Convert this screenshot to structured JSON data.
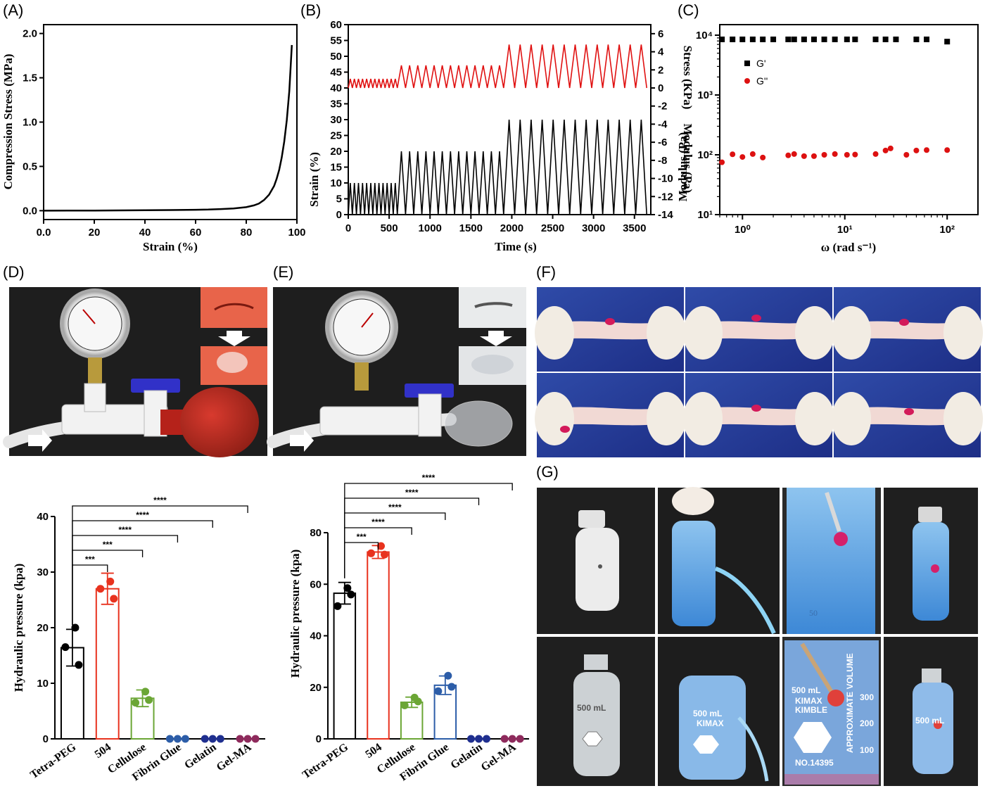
{
  "panels": {
    "A": "(A)",
    "B": "(B)",
    "C": "(C)",
    "D": "(D)",
    "E": "(E)",
    "F": "(F)",
    "G": "(G)"
  },
  "photos": {
    "D": {
      "description": "pressure gauge with valve, tubing and red balloon; insets show incision before and after sealing"
    },
    "E": {
      "description": "pressure gauge with valve, tubing and transparent bag; insets show incision before and after sealing"
    },
    "F": {
      "description": "six frames of gloved hands stretching and twisting a tissue strip with red sealed spot"
    },
    "G": {
      "description": "eight photos of plastic and glass bottles with a hole sealed by hydrogel, filled with blue water",
      "bottle_text": [
        "500 mL",
        "KIMAX",
        "KIMBLE",
        "NO.14395",
        "APPROXIMATE VOLUME",
        "300",
        "200",
        "100",
        "50"
      ]
    }
  },
  "colors": {
    "black": "#000000",
    "red": "#e8321e",
    "green": "#6ba635",
    "blue": "#2c5da8",
    "navy": "#1f2f8f",
    "purple": "#8e2a5c",
    "stress_red": "#e01010",
    "Gpp_red": "#dd1111"
  },
  "chart_data": [
    {
      "id": "A",
      "type": "line",
      "xlabel": "Strain (%)",
      "ylabel": "Compression Stress (MPa)",
      "xlim": [
        0,
        100
      ],
      "ylim": [
        -0.1,
        2.1
      ],
      "xticks": [
        "0.0",
        "20",
        "40",
        "60",
        "80",
        "100"
      ],
      "yticks": [
        "0.0",
        "0.5",
        "1.0",
        "1.5",
        "2.0"
      ],
      "x": [
        0,
        10,
        20,
        30,
        40,
        50,
        60,
        65,
        70,
        75,
        80,
        83,
        85,
        87,
        89,
        91,
        92,
        93,
        94,
        95,
        96,
        97,
        98
      ],
      "y": [
        0,
        0.001,
        0.002,
        0.003,
        0.005,
        0.007,
        0.01,
        0.013,
        0.018,
        0.025,
        0.04,
        0.06,
        0.08,
        0.12,
        0.18,
        0.28,
        0.36,
        0.46,
        0.6,
        0.78,
        1.02,
        1.35,
        1.87
      ]
    },
    {
      "id": "B",
      "type": "line",
      "xlabel": "Time (s)",
      "ylabel_left": "Strain (%)",
      "ylabel_right": "Modulus (Pa)",
      "ylabel_right_top": "Stress (KPa)",
      "xlim": [
        0,
        3700
      ],
      "ylim_left": [
        0,
        60
      ],
      "ylim_right": [
        -14,
        7
      ],
      "xticks": [
        "0",
        "500",
        "1000",
        "1500",
        "2000",
        "2500",
        "3000",
        "3500"
      ],
      "yticks_left": [
        "0",
        "5",
        "10",
        "15",
        "20",
        "25",
        "30",
        "35",
        "40",
        "45",
        "50",
        "55",
        "60"
      ],
      "yticks_right": [
        "-14",
        "-12",
        "-10",
        "-8",
        "-6",
        "-4",
        "-2",
        "0",
        "2",
        "4",
        "6"
      ],
      "series": [
        {
          "name": "Strain",
          "color": "#000000",
          "segments": [
            {
              "t0": 0,
              "t1": 600,
              "cycles": 12,
              "amp": 10
            },
            {
              "t0": 600,
              "t1": 1900,
              "cycles": 13,
              "amp": 20
            },
            {
              "t0": 1900,
              "t1": 3650,
              "cycles": 13,
              "amp": 30
            }
          ]
        },
        {
          "name": "Stress",
          "color": "#e01010",
          "segments": [
            {
              "t0": 0,
              "t1": 600,
              "cycles": 12,
              "amp": 1
            },
            {
              "t0": 600,
              "t1": 1900,
              "cycles": 13,
              "amp": 2.5
            },
            {
              "t0": 1900,
              "t1": 3650,
              "cycles": 13,
              "amp": 4.8
            }
          ]
        }
      ]
    },
    {
      "id": "C",
      "type": "scatter",
      "xlabel": "ω (rad s⁻¹)",
      "ylabel": "Modulus (Pa)",
      "log_x": true,
      "log_y": true,
      "xlim": [
        0.6,
        200
      ],
      "ylim": [
        10,
        15000
      ],
      "xticks": [
        "10⁰",
        "10¹",
        "10²"
      ],
      "yticks": [
        "10¹",
        "10²",
        "10³",
        "10⁴"
      ],
      "legend": [
        "G'",
        "G''"
      ],
      "series": [
        {
          "name": "G'",
          "color": "#000000",
          "marker": "square",
          "x": [
            0.63,
            0.8,
            1.0,
            1.26,
            1.58,
            2.0,
            2.8,
            3.2,
            4.0,
            5.0,
            6.3,
            8.0,
            10.5,
            12.6,
            20,
            25,
            31.6,
            50,
            63,
            100
          ],
          "y": [
            8500,
            8500,
            8500,
            8500,
            8500,
            8500,
            8500,
            8500,
            8500,
            8500,
            8500,
            8500,
            8500,
            8500,
            8500,
            8500,
            8500,
            8500,
            8500,
            7800
          ]
        },
        {
          "name": "G''",
          "color": "#dd1111",
          "marker": "circle",
          "x": [
            0.63,
            0.8,
            1.0,
            1.26,
            1.58,
            2.8,
            3.2,
            4.0,
            5.0,
            6.3,
            8.0,
            10.5,
            12.6,
            20,
            25,
            28,
            40,
            50,
            63,
            100
          ],
          "y": [
            75,
            102,
            92,
            103,
            90,
            98,
            103,
            95,
            95,
            100,
            103,
            100,
            101,
            103,
            118,
            128,
            100,
            118,
            120,
            120
          ]
        }
      ]
    },
    {
      "id": "D-bar",
      "type": "bar",
      "ylabel": "Hydraulic pressure (kpa)",
      "ylim": [
        0,
        40
      ],
      "yticks": [
        "0",
        "10",
        "20",
        "30",
        "40"
      ],
      "categories": [
        "Tetra-PEG",
        "504",
        "Cellulose",
        "Fibrin Glue",
        "Gelatin",
        "Gel-MA"
      ],
      "values": [
        16.4,
        27.0,
        7.3,
        0,
        0,
        0
      ],
      "errors": [
        3.3,
        2.8,
        1.5,
        0,
        0,
        0
      ],
      "points": [
        [
          20.0,
          16.5,
          13.3
        ],
        [
          28.3,
          27.0,
          25.2
        ],
        [
          8.5,
          6.5,
          7.0
        ],
        [
          0,
          0,
          0
        ],
        [
          0,
          0,
          0
        ],
        [
          0,
          0,
          0
        ]
      ],
      "colors": [
        "#000000",
        "#e8321e",
        "#6ba635",
        "#2c5da8",
        "#1f2f8f",
        "#8e2a5c"
      ],
      "comparisons": [
        {
          "to": 1,
          "label": "***"
        },
        {
          "to": 2,
          "label": "***"
        },
        {
          "to": 3,
          "label": "****"
        },
        {
          "to": 4,
          "label": "****"
        },
        {
          "to": 5,
          "label": "****"
        }
      ]
    },
    {
      "id": "E-bar",
      "type": "bar",
      "ylabel": "Hydraulic pressure (kpa)",
      "ylim": [
        0,
        80
      ],
      "yticks": [
        "0",
        "20",
        "40",
        "60",
        "80"
      ],
      "categories": [
        "Tetra-PEG",
        "504",
        "Cellulose",
        "Fibrin Glue",
        "Gelatin",
        "Gel-MA"
      ],
      "values": [
        56.5,
        72.5,
        14.2,
        20.8,
        0,
        0
      ],
      "errors": [
        4.2,
        2.5,
        2.0,
        3.6,
        0,
        0
      ],
      "points": [
        [
          58.5,
          51.5,
          56.0
        ],
        [
          74.8,
          72.0,
          71.5
        ],
        [
          16.0,
          13.0,
          14.5
        ],
        [
          24.5,
          18.5,
          20.2
        ],
        [
          0,
          0,
          0
        ],
        [
          0,
          0,
          0
        ]
      ],
      "colors": [
        "#000000",
        "#e8321e",
        "#6ba635",
        "#2c5da8",
        "#1f2f8f",
        "#8e2a5c"
      ],
      "comparisons": [
        {
          "to": 1,
          "label": "***"
        },
        {
          "to": 2,
          "label": "****"
        },
        {
          "to": 3,
          "label": "****"
        },
        {
          "to": 4,
          "label": "****"
        },
        {
          "to": 5,
          "label": "****"
        }
      ]
    }
  ]
}
